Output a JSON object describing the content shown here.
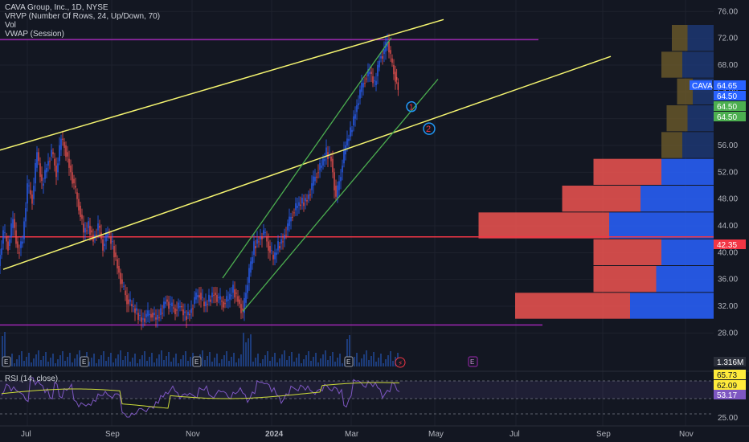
{
  "legend": {
    "title": "CAVA Group, Inc., 1D, NYSE",
    "vrvp": "VRVP (Number Of Rows, 24, Up/Down, 70)",
    "vol": "Vol",
    "vwap": "VWAP (Session)"
  },
  "rsi_label": "RSI (14, close)",
  "colors": {
    "background": "#131722",
    "up": "#2962ff",
    "down": "#ef5350",
    "channel": "#f5f570",
    "trend": "#4caf50",
    "purple": "#9c27b0",
    "support": "#f23645"
  },
  "chart_data": {
    "type": "candlestick",
    "symbol": "CAVA",
    "interval": "1D",
    "exchange": "NYSE",
    "price_axis": {
      "range": [
        26,
        77
      ],
      "ticks": [
        "76.00",
        "72.00",
        "68.00",
        "64.00",
        "60.00",
        "56.00",
        "52.00",
        "48.00",
        "44.00",
        "40.00",
        "36.00",
        "32.00",
        "28.00"
      ]
    },
    "time_axis": {
      "labels": [
        "Jul",
        "Sep",
        "Nov",
        "2024",
        "Mar",
        "May",
        "Jul",
        "Sep",
        "Nov"
      ]
    },
    "price_tags": [
      {
        "id": "last",
        "label": "CAVA",
        "value": "64.65",
        "color": "#2962ff"
      },
      {
        "id": "t2",
        "value": "64.50",
        "color": "#2962ff"
      },
      {
        "id": "t3",
        "value": "64.50",
        "color": "#4caf50"
      },
      {
        "id": "t4",
        "value": "64.50",
        "color": "#4caf50"
      },
      {
        "id": "t5",
        "value": "42.35",
        "color": "#f23645"
      },
      {
        "id": "vol",
        "value": "1.316M",
        "color": "#2a2e39"
      }
    ],
    "price_path": [
      [
        0,
        38
      ],
      [
        6,
        43
      ],
      [
        12,
        41
      ],
      [
        18,
        45
      ],
      [
        24,
        40
      ],
      [
        30,
        42
      ],
      [
        36,
        50
      ],
      [
        42,
        48
      ],
      [
        48,
        55
      ],
      [
        54,
        50
      ],
      [
        60,
        53
      ],
      [
        66,
        55
      ],
      [
        72,
        52
      ],
      [
        78,
        57
      ],
      [
        82,
        56
      ],
      [
        88,
        53
      ],
      [
        94,
        50
      ],
      [
        100,
        47
      ],
      [
        106,
        43
      ],
      [
        112,
        44
      ],
      [
        118,
        42
      ],
      [
        124,
        44
      ],
      [
        130,
        41
      ],
      [
        136,
        43
      ],
      [
        142,
        41
      ],
      [
        148,
        38
      ],
      [
        154,
        35
      ],
      [
        160,
        33
      ],
      [
        166,
        32
      ],
      [
        172,
        31
      ],
      [
        178,
        30
      ],
      [
        184,
        30.5
      ],
      [
        190,
        31
      ],
      [
        196,
        30
      ],
      [
        202,
        31
      ],
      [
        208,
        33
      ],
      [
        214,
        32
      ],
      [
        220,
        31.5
      ],
      [
        226,
        32
      ],
      [
        232,
        30.5
      ],
      [
        238,
        31
      ],
      [
        244,
        33
      ],
      [
        250,
        34
      ],
      [
        256,
        32
      ],
      [
        262,
        33
      ],
      [
        268,
        34
      ],
      [
        274,
        33
      ],
      [
        280,
        32.5
      ],
      [
        286,
        33
      ],
      [
        292,
        34.5
      ],
      [
        298,
        33
      ],
      [
        304,
        31
      ],
      [
        308,
        34
      ],
      [
        312,
        37
      ],
      [
        318,
        41
      ],
      [
        324,
        42
      ],
      [
        330,
        43
      ],
      [
        336,
        41
      ],
      [
        342,
        39
      ],
      [
        348,
        41
      ],
      [
        354,
        42
      ],
      [
        360,
        44
      ],
      [
        366,
        46
      ],
      [
        372,
        47
      ],
      [
        378,
        47.5
      ],
      [
        384,
        48
      ],
      [
        390,
        50
      ],
      [
        396,
        52
      ],
      [
        402,
        53
      ],
      [
        408,
        55
      ],
      [
        414,
        54
      ],
      [
        420,
        48
      ],
      [
        426,
        52
      ],
      [
        432,
        56
      ],
      [
        438,
        58
      ],
      [
        444,
        61
      ],
      [
        450,
        64
      ],
      [
        456,
        66
      ],
      [
        462,
        67
      ],
      [
        468,
        65
      ],
      [
        474,
        69
      ],
      [
        480,
        70
      ],
      [
        484,
        71.5
      ],
      [
        488,
        69
      ],
      [
        492,
        67
      ],
      [
        497,
        64.65
      ]
    ],
    "volume_profile": {
      "row_height": 4,
      "rows": [
        {
          "price": 74,
          "up": 0,
          "down": 0
        },
        {
          "price": 70,
          "up": 5,
          "down": 3
        },
        {
          "price": 66,
          "up": 6,
          "down": 4
        },
        {
          "price": 62,
          "up": 4,
          "down": 3
        },
        {
          "price": 58,
          "up": 5,
          "down": 4
        },
        {
          "price": 54,
          "up": 6,
          "down": 4
        },
        {
          "price": 50,
          "up": 10,
          "down": 13
        },
        {
          "price": 46,
          "up": 14,
          "down": 15
        },
        {
          "price": 42,
          "up": 20,
          "down": 25
        },
        {
          "price": 38,
          "up": 10,
          "down": 13
        },
        {
          "price": 34,
          "up": 11,
          "down": 12
        },
        {
          "price": 30,
          "up": 16,
          "down": 22
        }
      ]
    },
    "rsi": {
      "values": [
        "65.73",
        "62.09",
        "53.17"
      ],
      "axis_tick": "25.00",
      "colors": [
        "#ffeb3b",
        "#ffeb3b",
        "#7e57c2"
      ]
    }
  }
}
